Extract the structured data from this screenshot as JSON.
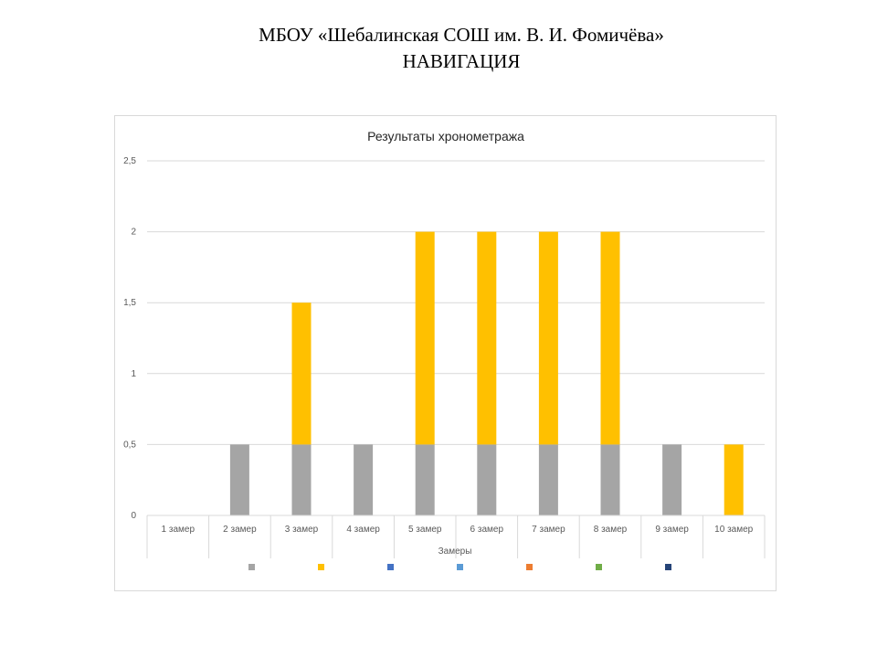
{
  "header": {
    "school_name": "МБОУ «Шебалинская СОШ им. В. И. Фомичёва»",
    "subject": "НАВИГАЦИЯ"
  },
  "chart_data": {
    "type": "bar",
    "stacked": true,
    "title": "Результаты хронометража",
    "xlabel": "Замеры",
    "ylabel": "",
    "ylim": [
      0,
      2.5
    ],
    "yticks": [
      "0",
      "0,5",
      "1",
      "1,5",
      "2",
      "2,5"
    ],
    "ytick_values": [
      0,
      0.5,
      1,
      1.5,
      2,
      2.5
    ],
    "grid": true,
    "legend": "bottom",
    "categories": [
      "1 замер",
      "2 замер",
      "3 замер",
      "4 замер",
      "5 замер",
      "6 замер",
      "7 замер",
      "8 замер",
      "9 замер",
      "10 замер"
    ],
    "series": [
      {
        "color": "#a5a5a5",
        "values": [
          0,
          0.5,
          0.5,
          0.5,
          0.5,
          0.5,
          0.5,
          0.5,
          0.5,
          0
        ]
      },
      {
        "color": "#ffc000",
        "values": [
          0,
          0,
          1,
          0,
          1.5,
          1.5,
          1.5,
          1.5,
          0,
          0.5
        ]
      },
      {
        "color": "#4472c4",
        "values": [
          0,
          0,
          0,
          0,
          0,
          0,
          0,
          0,
          0,
          0
        ]
      },
      {
        "color": "#5b9bd5",
        "values": [
          0,
          0,
          0,
          0,
          0,
          0,
          0,
          0,
          0,
          0
        ]
      },
      {
        "color": "#ed7d31",
        "values": [
          0,
          0,
          0,
          0,
          0,
          0,
          0,
          0,
          0,
          0
        ]
      },
      {
        "color": "#70ad47",
        "values": [
          0,
          0,
          0,
          0,
          0,
          0,
          0,
          0,
          0,
          0
        ]
      },
      {
        "color": "#264478",
        "values": [
          0,
          0,
          0,
          0,
          0,
          0,
          0,
          0,
          0,
          0
        ]
      }
    ]
  }
}
